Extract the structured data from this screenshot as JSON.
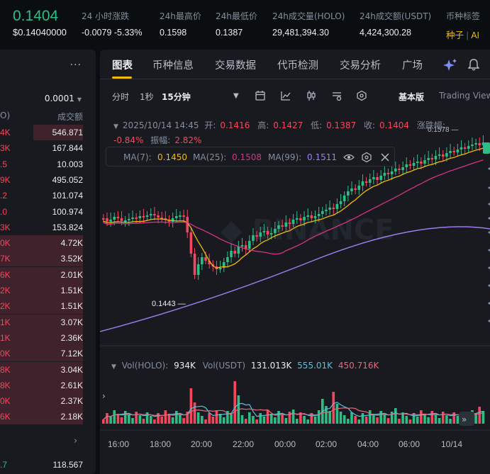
{
  "ticker": {
    "price": "0.1404",
    "price_usd": "$0.14040000",
    "change_label": "24 小时涨跌",
    "change_value": "-0.0079 -5.33%",
    "high_label": "24h最高价",
    "high_value": "0.1598",
    "low_label": "24h最低价",
    "low_value": "0.1387",
    "vol_holo_label": "24h成交量(HOLO)",
    "vol_holo_value": "29,481,394.30",
    "vol_usdt_label": "24h成交额(USDT)",
    "vol_usdt_value": "4,424,300.28",
    "tags_label": "币种标签",
    "tag_seed": "种子",
    "tag_ai": "AI"
  },
  "orderbook": {
    "more": "···",
    "precision": "0.0001",
    "col_left": "O)",
    "col_right": "成交额",
    "rows": [
      {
        "a": "4K",
        "b": "546.871",
        "side": "r",
        "w": 70
      },
      {
        "a": "3K",
        "b": "167.844",
        "side": "r",
        "w": 0
      },
      {
        "a": ".5",
        "b": "10.003",
        "side": "r",
        "w": 0
      },
      {
        "a": "9K",
        "b": "495.052",
        "side": "r",
        "w": 0
      },
      {
        "a": ".2",
        "b": "101.074",
        "side": "r",
        "w": 0
      },
      {
        "a": ".0",
        "b": "100.974",
        "side": "r",
        "w": 0
      },
      {
        "a": "3K",
        "b": "153.824",
        "side": "r",
        "w": 0
      },
      {
        "a": "0K",
        "b": "4.72K",
        "side": "r",
        "w": 120
      },
      {
        "a": "7K",
        "b": "3.52K",
        "side": "r",
        "w": 120
      },
      {
        "a": "6K",
        "b": "2.01K",
        "side": "r",
        "w": 120
      },
      {
        "a": "2K",
        "b": "1.51K",
        "side": "r",
        "w": 120
      },
      {
        "a": "2K",
        "b": "1.51K",
        "side": "r",
        "w": 120
      },
      {
        "a": "1K",
        "b": "3.07K",
        "side": "r",
        "w": 120
      },
      {
        "a": "1K",
        "b": "2.36K",
        "side": "r",
        "w": 120
      },
      {
        "a": "0K",
        "b": "7.12K",
        "side": "r",
        "w": 120
      },
      {
        "a": "8K",
        "b": "3.04K",
        "side": "r",
        "w": 120
      },
      {
        "a": "8K",
        "b": "2.61K",
        "side": "r",
        "w": 120
      },
      {
        "a": "0K",
        "b": "2.37K",
        "side": "r",
        "w": 120
      },
      {
        "a": "6K",
        "b": "2.18K",
        "side": "r",
        "w": 120
      }
    ],
    "last_a": ".7",
    "last_b": "118.567"
  },
  "tabs": [
    "图表",
    "币种信息",
    "交易数据",
    "代币检测",
    "交易分析",
    "广场"
  ],
  "toolbar": {
    "time_label": "分时",
    "sec_label": "1秒",
    "interval": "15分钟",
    "basic": "基本版",
    "tradingview": "Trading View"
  },
  "ohlc": {
    "date": "2025/10/14 14:45",
    "open_label": "开:",
    "open": "0.1416",
    "high_label": "高:",
    "high": "0.1427",
    "low_label": "低:",
    "low": "0.1387",
    "close_label": "收:",
    "close": "0.1404",
    "chg_label": "涨跌幅:",
    "chg": "-0.84%",
    "amp_label": "振幅:",
    "amp": "2.82%"
  },
  "ma": {
    "ma7_label": "MA(7):",
    "ma7": "0.1450",
    "ma25_label": "MA(25):",
    "ma25": "0.1508",
    "ma99_label": "MA(99):",
    "ma99": "0.1511",
    "colors": {
      "ma7": "#f0b90b",
      "ma25": "#d63384",
      "ma99": "#9d7df5"
    }
  },
  "volume": {
    "holo_label": "Vol(HOLO):",
    "holo": "934K",
    "usdt_label": "Vol(USDT)",
    "usdt": "131.013K",
    "ma5": "555.01K",
    "ma10": "450.716K"
  },
  "chart_data": {
    "type": "candlestick",
    "x_ticks": [
      "16:00",
      "18:00",
      "20:00",
      "22:00",
      "00:00",
      "02:00",
      "04:00",
      "06:00",
      "10/14"
    ],
    "annotations": {
      "min_label": "0.1443",
      "max_label": "0.1578"
    },
    "colors": {
      "up": "#2ebd85",
      "down": "#f6465d"
    }
  }
}
